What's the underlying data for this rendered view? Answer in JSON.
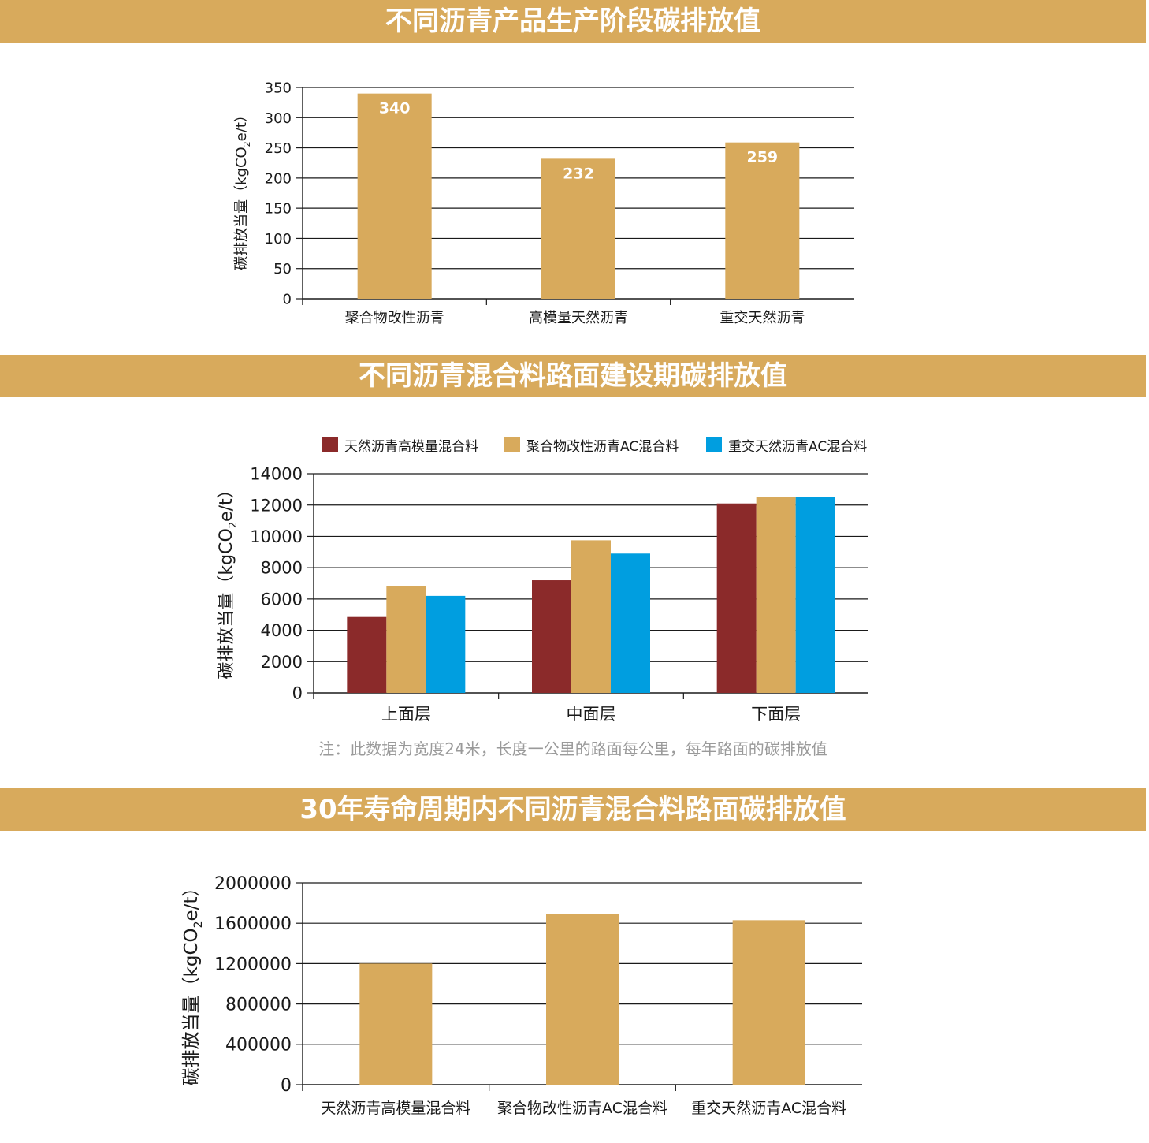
{
  "sections": [
    {
      "title": "不同沥青产品生产阶段碳排放值"
    },
    {
      "title": "不同沥青混合料路面建设期碳排放值"
    },
    {
      "title": "30年寿命周期内不同沥青混合料路面碳排放值"
    }
  ],
  "note": "注：此数据为宽度24米，长度一公里的路面每公里，每年路面的碳排放值",
  "colors": {
    "banner": "#d8aa5c",
    "gold": "#d8aa5c",
    "red": "#8b2a2a",
    "blue": "#009ee0"
  },
  "chart_data": [
    {
      "type": "bar",
      "title": "不同沥青产品生产阶段碳排放值",
      "categories": [
        "聚合物改性沥青",
        "高模量天然沥青",
        "重交天然沥青"
      ],
      "series": [
        {
          "values": [
            340,
            232,
            259
          ],
          "color": "#d8aa5c",
          "data_labels": [
            "340",
            "232",
            "259"
          ]
        }
      ],
      "ylabel_main": "碳排放当量",
      "ylabel_unit": "（kgCO",
      "ylabel_sub": "2",
      "ylabel_tail": "e/t）",
      "ylim": [
        0,
        350
      ],
      "yticks": [
        0,
        50,
        100,
        150,
        200,
        250,
        300,
        350
      ],
      "grid": true
    },
    {
      "type": "bar",
      "title": "不同沥青混合料路面建设期碳排放值",
      "categories": [
        "上面层",
        "中面层",
        "下面层"
      ],
      "series": [
        {
          "name": "天然沥青高模量混合料",
          "values": [
            4850,
            7200,
            12100
          ],
          "color": "#8b2a2a"
        },
        {
          "name": "聚合物改性沥青AC混合料",
          "values": [
            6800,
            9750,
            12500
          ],
          "color": "#d8aa5c"
        },
        {
          "name": "重交天然沥青AC混合料",
          "values": [
            6200,
            8900,
            12500
          ],
          "color": "#009ee0"
        }
      ],
      "ylabel_main": "碳排放当量",
      "ylabel_unit": "（kgCO",
      "ylabel_sub": "2",
      "ylabel_tail": "e/t）",
      "ylim": [
        0,
        14000
      ],
      "yticks": [
        0,
        2000,
        4000,
        6000,
        8000,
        10000,
        12000,
        14000
      ],
      "grid": true,
      "legend": "top"
    },
    {
      "type": "bar",
      "title": "30年寿命周期内不同沥青混合料路面碳排放值",
      "categories": [
        "天然沥青高模量混合料",
        "聚合物改性沥青AC混合料",
        "重交天然沥青AC混合料"
      ],
      "series": [
        {
          "values": [
            1200000,
            1690000,
            1630000
          ],
          "color": "#d8aa5c"
        }
      ],
      "ylabel_main": "碳排放当量",
      "ylabel_unit": "（kgCO",
      "ylabel_sub": "2",
      "ylabel_tail": "e/t）",
      "ylim": [
        0,
        2000000
      ],
      "yticks": [
        0,
        400000,
        800000,
        1200000,
        1600000,
        2000000
      ],
      "grid": true
    }
  ]
}
